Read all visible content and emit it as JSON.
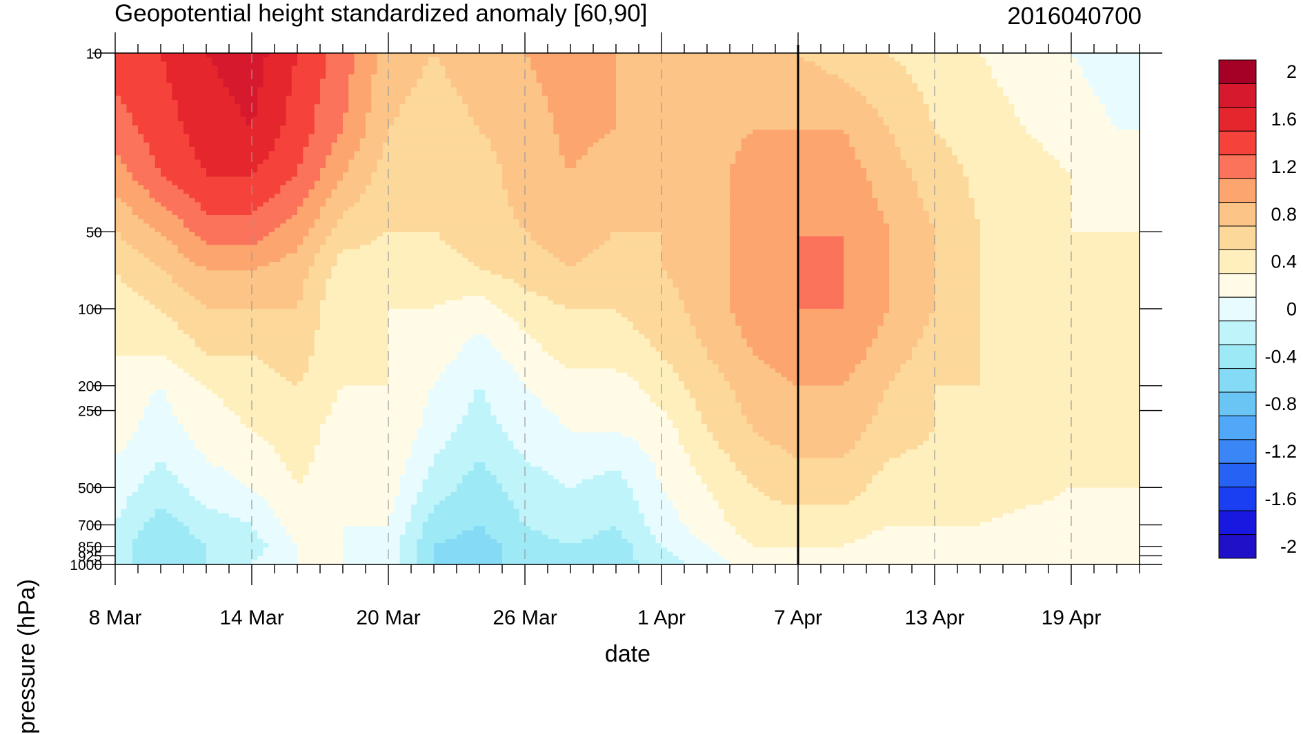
{
  "chart_data": {
    "type": "heatmap",
    "title": "Geopotential height standardized anomaly [60,90]",
    "subtitle": "2016040700",
    "xlabel": "date",
    "ylabel": "pressure (hPa)",
    "x_tick_labels": [
      "8 Mar",
      "14 Mar",
      "20 Mar",
      "26 Mar",
      "1 Apr",
      "7 Apr",
      "13 Apr",
      "19 Apr"
    ],
    "x_range_days": [
      0,
      45
    ],
    "marker_line": "7 Apr",
    "y_scale": "log",
    "y_range": [
      1000,
      10
    ],
    "y_tick_labels": [
      "10",
      "50",
      "100",
      "200",
      "250",
      "500",
      "700",
      "850",
      "925",
      "1000"
    ],
    "y_tick_values": [
      10,
      50,
      100,
      200,
      250,
      500,
      700,
      850,
      925,
      1000
    ],
    "colorbar": {
      "labels": [
        "2",
        "1.6",
        "1.2",
        "0.8",
        "0.4",
        "0",
        "-0.4",
        "-0.8",
        "-1.2",
        "-1.6",
        "-2"
      ],
      "levels": [
        2,
        1.8,
        1.6,
        1.4,
        1.2,
        1.0,
        0.8,
        0.6,
        0.4,
        0.2,
        0,
        -0.2,
        -0.4,
        -0.6,
        -0.8,
        -1.0,
        -1.2,
        -1.4,
        -1.6,
        -1.8,
        -2
      ],
      "colors": [
        "#a50026",
        "#d7192d",
        "#e5262d",
        "#f5423a",
        "#fb735a",
        "#fca56f",
        "#fcc486",
        "#fdd89b",
        "#feefbc",
        "#fffbe6",
        "#e8fcff",
        "#c0f4fb",
        "#9ee9f6",
        "#85daf5",
        "#6ac5f4",
        "#52a8f8",
        "#3a86f6",
        "#2662f4",
        "#1a3ef2",
        "#1818e0",
        "#2010c8"
      ]
    },
    "sampled_values": {
      "x_days": [
        0,
        2,
        4,
        6,
        8,
        10,
        12,
        14,
        16,
        18,
        20,
        22,
        24,
        26,
        28,
        30,
        32,
        34,
        36,
        38,
        40,
        42,
        44
      ],
      "pressures": [
        10,
        20,
        30,
        50,
        70,
        100,
        150,
        200,
        300,
        500,
        700,
        850,
        1000
      ],
      "field": [
        [
          1.5,
          1.6,
          1.8,
          1.9,
          1.6,
          1.3,
          0.9,
          0.8,
          0.9,
          1.0,
          1.1,
          1.0,
          0.9,
          0.95,
          1.0,
          0.8,
          0.7,
          0.6,
          0.5,
          0.4,
          0.3,
          0.2,
          0.1
        ],
        [
          1.3,
          1.5,
          1.7,
          1.8,
          1.5,
          1.2,
          0.8,
          0.7,
          0.8,
          0.9,
          1.05,
          1.0,
          0.9,
          0.9,
          1.0,
          1.0,
          1.0,
          0.8,
          0.6,
          0.5,
          0.4,
          0.3,
          0.2
        ],
        [
          1.1,
          1.4,
          1.6,
          1.6,
          1.4,
          1.0,
          0.7,
          0.6,
          0.7,
          0.9,
          1.0,
          0.9,
          0.8,
          0.9,
          1.1,
          1.2,
          1.1,
          0.9,
          0.7,
          0.55,
          0.5,
          0.4,
          0.3
        ],
        [
          0.8,
          1.0,
          1.3,
          1.3,
          1.1,
          0.7,
          0.6,
          0.6,
          0.7,
          0.8,
          0.9,
          0.8,
          0.8,
          0.9,
          1.1,
          1.2,
          1.2,
          1.0,
          0.8,
          0.6,
          0.5,
          0.4,
          0.4
        ],
        [
          0.6,
          0.8,
          1.0,
          1.0,
          0.9,
          0.5,
          0.5,
          0.5,
          0.6,
          0.7,
          0.8,
          0.7,
          0.8,
          0.9,
          1.1,
          1.2,
          1.2,
          1.0,
          0.8,
          0.6,
          0.55,
          0.4,
          0.4
        ],
        [
          0.5,
          0.6,
          0.8,
          0.8,
          0.8,
          0.4,
          0.4,
          0.4,
          0.3,
          0.5,
          0.6,
          0.6,
          0.7,
          0.9,
          1.1,
          1.2,
          1.2,
          1.0,
          0.8,
          0.6,
          0.5,
          0.5,
          0.5
        ],
        [
          0.4,
          0.4,
          0.6,
          0.6,
          0.7,
          0.4,
          0.4,
          0.3,
          0.1,
          0.3,
          0.5,
          0.5,
          0.6,
          0.8,
          1.0,
          1.1,
          1.1,
          0.9,
          0.7,
          0.6,
          0.55,
          0.5,
          0.5
        ],
        [
          0.3,
          0.2,
          0.4,
          0.5,
          0.6,
          0.4,
          0.4,
          0.2,
          0.0,
          0.2,
          0.3,
          0.3,
          0.5,
          0.7,
          0.9,
          1.0,
          1.0,
          0.8,
          0.6,
          0.6,
          0.55,
          0.5,
          0.5
        ],
        [
          0.3,
          0.1,
          0.3,
          0.4,
          0.5,
          0.3,
          0.4,
          0.1,
          -0.1,
          0.1,
          0.2,
          0.2,
          0.3,
          0.6,
          0.8,
          0.9,
          0.9,
          0.7,
          0.6,
          0.55,
          0.55,
          0.5,
          0.5
        ],
        [
          0.1,
          -0.1,
          0.1,
          0.2,
          0.4,
          0.3,
          0.3,
          -0.1,
          -0.3,
          -0.1,
          0.0,
          -0.1,
          0.2,
          0.4,
          0.6,
          0.7,
          0.7,
          0.5,
          0.5,
          0.5,
          0.45,
          0.4,
          0.4
        ],
        [
          0.0,
          -0.3,
          -0.1,
          0.0,
          0.3,
          0.2,
          0.2,
          -0.3,
          -0.4,
          -0.2,
          -0.1,
          -0.2,
          0.1,
          0.3,
          0.5,
          0.5,
          0.5,
          0.4,
          0.4,
          0.4,
          0.35,
          0.35,
          0.35
        ],
        [
          -0.1,
          -0.4,
          -0.2,
          -0.1,
          0.2,
          0.2,
          0.1,
          -0.4,
          -0.5,
          -0.3,
          -0.2,
          -0.3,
          0.0,
          0.2,
          0.4,
          0.4,
          0.4,
          0.3,
          0.3,
          0.3,
          0.3,
          0.3,
          0.3
        ],
        [
          -0.1,
          -0.4,
          -0.2,
          0.0,
          0.2,
          0.2,
          0.1,
          -0.4,
          -0.5,
          -0.3,
          -0.2,
          -0.3,
          -0.1,
          0.1,
          0.3,
          0.35,
          0.35,
          0.3,
          0.3,
          0.25,
          0.25,
          0.25,
          0.3
        ]
      ]
    }
  }
}
